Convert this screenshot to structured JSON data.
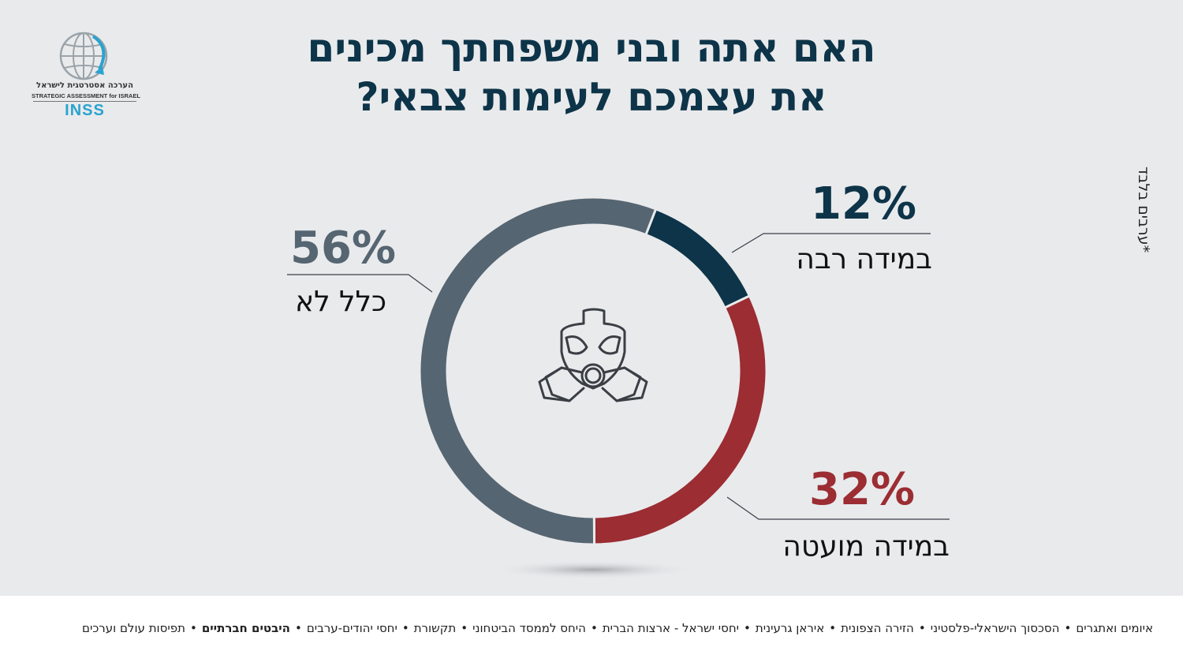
{
  "title_line1": "האם אתה ובני משפחתך מכינים",
  "title_line2": "את עצמכם לעימות צבאי?",
  "logo": {
    "hebrew": "הערכה אסטרטגית לישראל",
    "english": "STRATEGIC ASSESSMENT for ISRAEL",
    "inss": "INSS"
  },
  "side_note": "*ערבים בלבד",
  "center_icon": "gas-mask-icon",
  "colors": {
    "background": "#e9eaec",
    "dark_blue": "#0d3448",
    "red": "#9b2d33",
    "gray": "#556571"
  },
  "chart_data": {
    "type": "pie",
    "donut": true,
    "title": "האם אתה ובני משפחתך מכינים את עצמכם לעימות צבאי?",
    "slices": [
      {
        "label": "במידה רבה",
        "value": 12,
        "display": "12%",
        "color": "#0d3448"
      },
      {
        "label": "במידה מועטה",
        "value": 32,
        "display": "32%",
        "color": "#9b2d33"
      },
      {
        "label": "כלל לא",
        "value": 56,
        "display": "56%",
        "color": "#556571"
      }
    ]
  },
  "footer_topics": [
    {
      "text": "איומים ואתגרים",
      "highlight": false
    },
    {
      "text": "הסכסוך הישראלי-פלסטיני",
      "highlight": false
    },
    {
      "text": "הזירה הצפונית",
      "highlight": false
    },
    {
      "text": "איראן גרעינית",
      "highlight": false
    },
    {
      "text": "יחסי ישראל - ארצות הברית",
      "highlight": false
    },
    {
      "text": "היחס לממסד הביטחוני",
      "highlight": false
    },
    {
      "text": "תקשורת",
      "highlight": false
    },
    {
      "text": "יחסי יהודים-ערבים",
      "highlight": false
    },
    {
      "text": "היבטים חברתיים",
      "highlight": true
    },
    {
      "text": "תפיסות עולם וערכים",
      "highlight": false
    }
  ]
}
